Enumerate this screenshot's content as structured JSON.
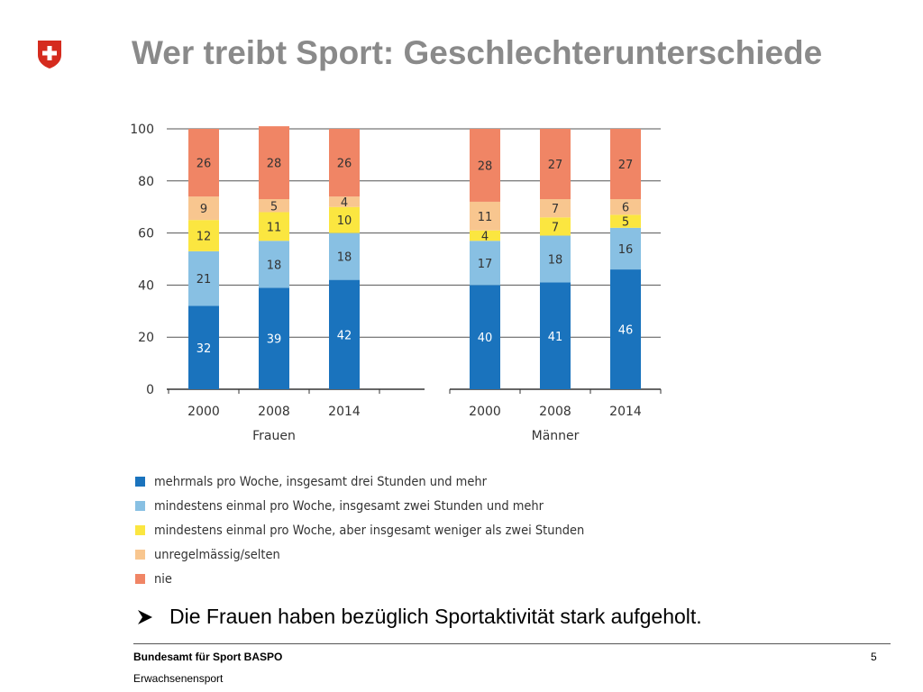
{
  "slide": {
    "title": "Wer treibt Sport: Geschlechterunterschiede",
    "bullet": "Die Frauen haben bezüglich Sportaktivität stark aufgeholt.",
    "footer_org": "Bundesamt für Sport BASPO",
    "footer_dept": "Erwachsenensport",
    "page_number": "5",
    "logo_icon": "swiss-cross-icon",
    "bullet_icon": "arrow-bullet-icon",
    "accent_color": "#d52b1e"
  },
  "chart_data": {
    "type": "bar",
    "stacked": true,
    "ylim": [
      0,
      100
    ],
    "yticks": [
      0,
      20,
      40,
      60,
      80,
      100
    ],
    "grid": true,
    "legend_position": "bottom",
    "groups": [
      {
        "label": "Frauen",
        "categories": [
          "2000",
          "2008",
          "2014"
        ]
      },
      {
        "label": "Männer",
        "categories": [
          "2000",
          "2008",
          "2014"
        ]
      }
    ],
    "series": [
      {
        "name": "mehrmals pro Woche, insgesamt drei Stunden und mehr",
        "color": "#1a73bd",
        "label_color": "#ffffff",
        "values": [
          32,
          39,
          42,
          40,
          41,
          46
        ]
      },
      {
        "name": "mindestens einmal pro Woche, insgesamt zwei Stunden und mehr",
        "color": "#88c0e3",
        "label_color": "#333333",
        "values": [
          21,
          18,
          18,
          17,
          18,
          16
        ]
      },
      {
        "name": "mindestens einmal pro Woche, aber insgesamt weniger als zwei Stunden",
        "color": "#fbe640",
        "label_color": "#333333",
        "values": [
          12,
          11,
          10,
          4,
          7,
          5
        ]
      },
      {
        "name": "unregelmässig/selten",
        "color": "#f8c68f",
        "label_color": "#333333",
        "values": [
          9,
          5,
          4,
          11,
          7,
          6
        ]
      },
      {
        "name": "nie",
        "color": "#f08565",
        "label_color": "#333333",
        "values": [
          26,
          28,
          26,
          28,
          27,
          27
        ]
      }
    ]
  }
}
